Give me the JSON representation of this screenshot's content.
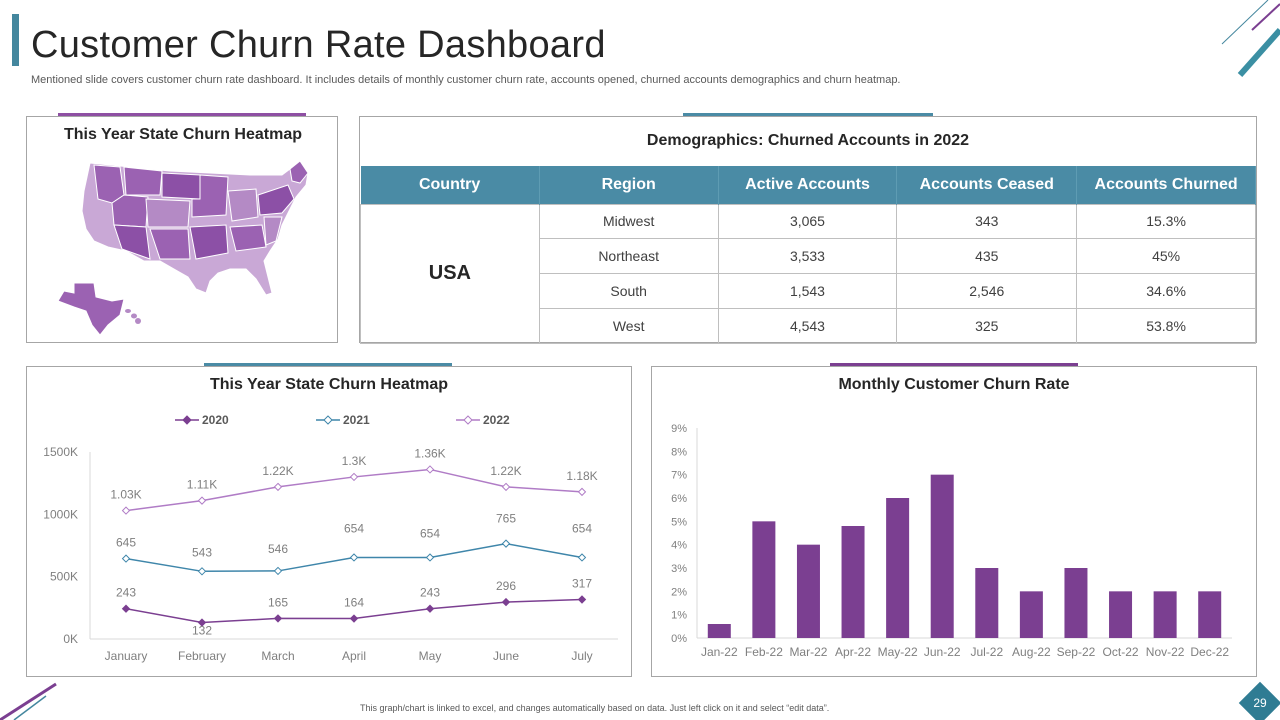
{
  "header": {
    "title": "Customer Churn Rate Dashboard",
    "subtitle": "Mentioned slide covers customer churn rate dashboard. It includes details of monthly customer churn rate, accounts opened, churned accounts demographics and churn heatmap."
  },
  "map_panel": {
    "title": "This Year State Churn Heatmap"
  },
  "demographics": {
    "title": "Demographics: Churned Accounts in 2022",
    "columns": [
      "Country",
      "Region",
      "Active Accounts",
      "Accounts Ceased",
      "Accounts Churned"
    ],
    "country": "USA",
    "rows": [
      [
        "Midwest",
        "3,065",
        "343",
        "15.3%"
      ],
      [
        "Northeast",
        "3,533",
        "435",
        "45%"
      ],
      [
        "South",
        "1,543",
        "2,546",
        "34.6%"
      ],
      [
        "West",
        "4,543",
        "325",
        "53.8%"
      ]
    ]
  },
  "line_panel": {
    "title": "This Year State Churn Heatmap"
  },
  "bar_panel": {
    "title": "Monthly Customer Churn Rate"
  },
  "chart_data": [
    {
      "type": "line",
      "title": "This Year State Churn Heatmap",
      "categories": [
        "January",
        "February",
        "March",
        "April",
        "May",
        "June",
        "July"
      ],
      "yticks": [
        "0K",
        "500K",
        "1000K",
        "1500K"
      ],
      "ylim": [
        0,
        1500
      ],
      "series": [
        {
          "name": "2020",
          "color": "#7b3f91",
          "values": [
            243,
            132,
            165,
            164,
            243,
            296,
            317
          ],
          "labels": [
            "243",
            "132",
            "165",
            "164",
            "243",
            "296",
            "317"
          ]
        },
        {
          "name": "2021",
          "color": "#3f86aa",
          "values": [
            645,
            543,
            546,
            654,
            654,
            765,
            654
          ],
          "labels": [
            "645",
            "543",
            "546",
            "654",
            "654",
            "765",
            "654"
          ]
        },
        {
          "name": "2022",
          "color": "#b07cc6",
          "values": [
            1030,
            1110,
            1220,
            1300,
            1360,
            1220,
            1180
          ],
          "labels": [
            "1.03K",
            "1.11K",
            "1.22K",
            "1.3K",
            "1.36K",
            "1.22K",
            "1.18K"
          ]
        }
      ]
    },
    {
      "type": "bar",
      "title": "Monthly Customer Churn Rate",
      "categories": [
        "Jan-22",
        "Feb-22",
        "Mar-22",
        "Apr-22",
        "May-22",
        "Jun-22",
        "Jul-22",
        "Aug-22",
        "Sep-22",
        "Oct-22",
        "Nov-22",
        "Dec-22"
      ],
      "values": [
        0.6,
        5.0,
        4.0,
        4.8,
        6.0,
        7.0,
        3.0,
        2.0,
        3.0,
        2.0,
        2.0,
        2.0
      ],
      "yticks": [
        "0%",
        "1%",
        "2%",
        "3%",
        "4%",
        "5%",
        "6%",
        "7%",
        "8%",
        "9%"
      ],
      "ylim": [
        0,
        9
      ],
      "color": "#7b3f91"
    }
  ],
  "footer": {
    "note": "This graph/chart is linked to excel, and changes automatically based on data. Just left click on it and select “edit data”.",
    "page_number": "29"
  }
}
